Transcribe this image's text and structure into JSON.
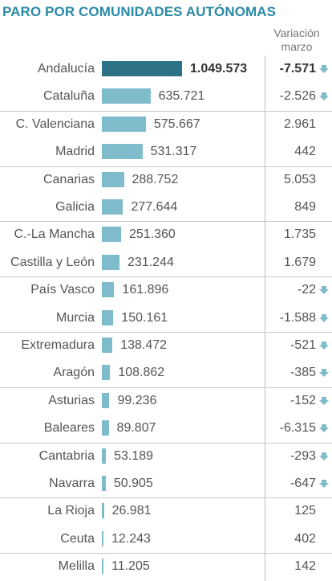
{
  "title": "PARO POR COMUNIDADES AUTÓNOMAS",
  "variation_header": [
    "Variación",
    "marzo"
  ],
  "colors": {
    "title": "#2b8aa6",
    "bar": "#7fbccb",
    "bar_highlight": "#2c7388",
    "arrow": "#7fbccb"
  },
  "chart_data": {
    "type": "bar",
    "orientation": "horizontal",
    "title": "PARO POR COMUNIDADES AUTÓNOMAS",
    "categories": [
      "Andalucía",
      "Cataluña",
      "C. Valenciana",
      "Madrid",
      "Canarias",
      "Galicia",
      "C.-La Mancha",
      "Castilla y León",
      "País Vasco",
      "Murcia",
      "Extremadura",
      "Aragón",
      "Asturias",
      "Baleares",
      "Cantabria",
      "Navarra",
      "La Rioja",
      "Ceuta",
      "Melilla"
    ],
    "values": [
      1049573,
      635721,
      575667,
      531317,
      288752,
      277644,
      251360,
      231244,
      161896,
      150161,
      138472,
      108862,
      99236,
      89807,
      53189,
      50905,
      26981,
      12243,
      11205
    ],
    "value_labels": [
      "1.049.573",
      "635.721",
      "575.667",
      "531.317",
      "288.752",
      "277.644",
      "251.360",
      "231.244",
      "161.896",
      "150.161",
      "138.472",
      "108.862",
      "99.236",
      "89.807",
      "53.189",
      "50.905",
      "26.981",
      "12.243",
      "11.205"
    ],
    "variation": [
      -7571,
      -2526,
      2961,
      442,
      5053,
      849,
      1735,
      1679,
      -22,
      -1588,
      -521,
      -385,
      -152,
      -6315,
      -293,
      -647,
      125,
      402,
      142
    ],
    "variation_labels": [
      "-7.571",
      "-2.526",
      "2.961",
      "442",
      "5.053",
      "849",
      "1.735",
      "1.679",
      "-22",
      "-1.588",
      "-521",
      "-385",
      "-152",
      "-6.315",
      "-293",
      "-647",
      "125",
      "402",
      "142"
    ],
    "highlight_index": 0,
    "variation_column_label": "Variación marzo",
    "grid": false
  }
}
